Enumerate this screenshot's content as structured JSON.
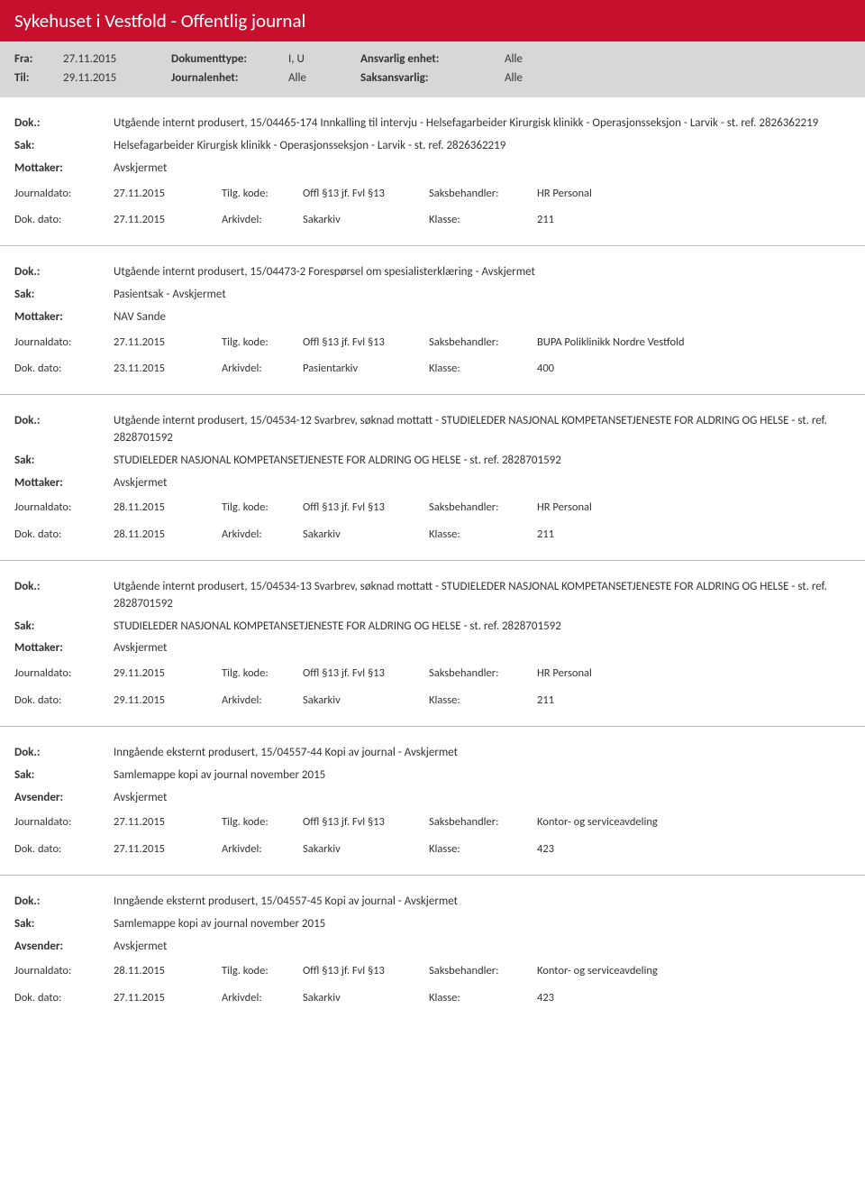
{
  "header": {
    "title": "Sykehuset i Vestfold - Offentlig journal"
  },
  "filter": {
    "fra_label": "Fra:",
    "fra_value": "27.11.2015",
    "til_label": "Til:",
    "til_value": "29.11.2015",
    "doktype_label": "Dokumenttype:",
    "doktype_value": "I, U",
    "journalenhet_label": "Journalenhet:",
    "journalenhet_value": "Alle",
    "ansvarlig_label": "Ansvarlig enhet:",
    "ansvarlig_value": "Alle",
    "saksansvarlig_label": "Saksansvarlig:",
    "saksansvarlig_value": "Alle"
  },
  "labels": {
    "dok": "Dok.:",
    "sak": "Sak:",
    "mottaker": "Mottaker:",
    "avsender": "Avsender:",
    "journaldato": "Journaldato:",
    "dokdato": "Dok. dato:",
    "tilgkode": "Tilg. kode:",
    "arkivdel": "Arkivdel:",
    "saksbehandler": "Saksbehandler:",
    "klasse": "Klasse:"
  },
  "entries": [
    {
      "dok": "Utgående internt produsert, 15/04465-174 Innkalling til intervju - Helsefagarbeider Kirurgisk klinikk - Operasjonsseksjon - Larvik - st. ref. 2826362219",
      "sak": "Helsefagarbeider Kirurgisk klinikk - Operasjonsseksjon - Larvik - st. ref. 2826362219",
      "party_label": "Mottaker:",
      "party": "Avskjermet",
      "journaldato": "27.11.2015",
      "tilgkode": "Offl §13 jf. Fvl §13",
      "saksbehandler": "HR Personal",
      "dokdato": "27.11.2015",
      "arkivdel": "Sakarkiv",
      "klasse": "211"
    },
    {
      "dok": "Utgående internt produsert, 15/04473-2 Forespørsel om spesialisterklæring - Avskjermet",
      "sak": "Pasientsak - Avskjermet",
      "party_label": "Mottaker:",
      "party": "NAV Sande",
      "journaldato": "27.11.2015",
      "tilgkode": "Offl §13 jf. Fvl §13",
      "saksbehandler": "BUPA Poliklinikk Nordre Vestfold",
      "dokdato": "23.11.2015",
      "arkivdel": "Pasientarkiv",
      "klasse": "400"
    },
    {
      "dok": "Utgående internt produsert, 15/04534-12 Svarbrev, søknad mottatt - STUDIELEDER NASJONAL KOMPETANSETJENESTE FOR ALDRING OG HELSE - st. ref. 2828701592",
      "sak": "STUDIELEDER NASJONAL KOMPETANSETJENESTE FOR ALDRING OG HELSE - st. ref. 2828701592",
      "party_label": "Mottaker:",
      "party": "Avskjermet",
      "journaldato": "28.11.2015",
      "tilgkode": "Offl §13 jf. Fvl §13",
      "saksbehandler": "HR Personal",
      "dokdato": "28.11.2015",
      "arkivdel": "Sakarkiv",
      "klasse": "211"
    },
    {
      "dok": "Utgående internt produsert, 15/04534-13 Svarbrev, søknad mottatt - STUDIELEDER NASJONAL KOMPETANSETJENESTE FOR ALDRING OG HELSE - st. ref. 2828701592",
      "sak": "STUDIELEDER NASJONAL KOMPETANSETJENESTE FOR ALDRING OG HELSE - st. ref. 2828701592",
      "party_label": "Mottaker:",
      "party": "Avskjermet",
      "journaldato": "29.11.2015",
      "tilgkode": "Offl §13 jf. Fvl §13",
      "saksbehandler": "HR Personal",
      "dokdato": "29.11.2015",
      "arkivdel": "Sakarkiv",
      "klasse": "211"
    },
    {
      "dok": "Inngående eksternt produsert, 15/04557-44 Kopi av journal - Avskjermet",
      "sak": "Samlemappe kopi av journal november 2015",
      "party_label": "Avsender:",
      "party": "Avskjermet",
      "journaldato": "27.11.2015",
      "tilgkode": "Offl §13 jf. Fvl §13",
      "saksbehandler": "Kontor- og serviceavdeling",
      "dokdato": "27.11.2015",
      "arkivdel": "Sakarkiv",
      "klasse": "423"
    },
    {
      "dok": "Inngående eksternt produsert, 15/04557-45 Kopi av journal - Avskjermet",
      "sak": "Samlemappe kopi av journal november 2015",
      "party_label": "Avsender:",
      "party": "Avskjermet",
      "journaldato": "28.11.2015",
      "tilgkode": "Offl §13 jf. Fvl §13",
      "saksbehandler": "Kontor- og serviceavdeling",
      "dokdato": "27.11.2015",
      "arkivdel": "Sakarkiv",
      "klasse": "423"
    }
  ]
}
